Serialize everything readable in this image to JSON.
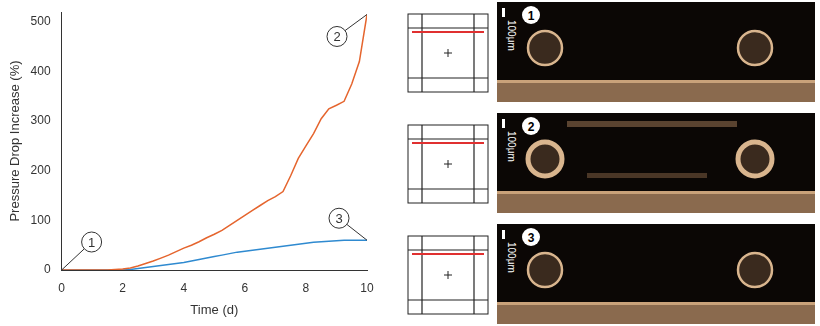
{
  "chart_data": {
    "type": "line",
    "x_label": "Time (d)",
    "y_label": "Pressure Drop Increase (%)",
    "xlim": [
      0,
      10
    ],
    "xticks": [
      0,
      2,
      4,
      6,
      8,
      10
    ],
    "ylim": [
      0,
      520
    ],
    "yticks": [
      0,
      100,
      200,
      300,
      400,
      500
    ],
    "grid": false,
    "x": [
      0,
      0.25,
      0.5,
      0.75,
      1,
      1.25,
      1.5,
      1.75,
      2,
      2.25,
      2.5,
      2.75,
      3,
      3.25,
      3.5,
      3.75,
      4,
      4.25,
      4.5,
      4.75,
      5,
      5.25,
      5.5,
      5.75,
      6,
      6.25,
      6.5,
      6.75,
      7,
      7.25,
      7.5,
      7.75,
      8,
      8.25,
      8.5,
      8.75,
      9,
      9.25,
      9.5,
      9.75,
      10
    ],
    "series": [
      {
        "color": "#e5652e",
        "values": [
          0,
          0,
          0,
          0,
          0,
          0,
          0,
          1,
          2,
          4,
          8,
          13,
          18,
          24,
          30,
          37,
          44,
          50,
          57,
          65,
          72,
          80,
          90,
          100,
          110,
          120,
          130,
          140,
          148,
          158,
          190,
          225,
          250,
          275,
          305,
          325,
          332,
          340,
          375,
          420,
          515
        ]
      },
      {
        "color": "#2f8ad0",
        "values": [
          0,
          0,
          0,
          0,
          0,
          0,
          0,
          0,
          0,
          1,
          3,
          5,
          7,
          9,
          11,
          13,
          15,
          18,
          21,
          24,
          27,
          30,
          33,
          36,
          38,
          40,
          42,
          44,
          46,
          48,
          50,
          52,
          54,
          56,
          57,
          58,
          59,
          60,
          60,
          60,
          60
        ]
      }
    ],
    "annotations": [
      {
        "text": "1",
        "x": 0,
        "y": 0
      },
      {
        "text": "2",
        "x": 10,
        "y": 515
      },
      {
        "text": "3",
        "x": 10,
        "y": 60
      }
    ]
  },
  "panels": [
    {
      "label": "1",
      "scale_bar": "100μm"
    },
    {
      "label": "2",
      "scale_bar": "100μm"
    },
    {
      "label": "3",
      "scale_bar": "100μm"
    }
  ]
}
